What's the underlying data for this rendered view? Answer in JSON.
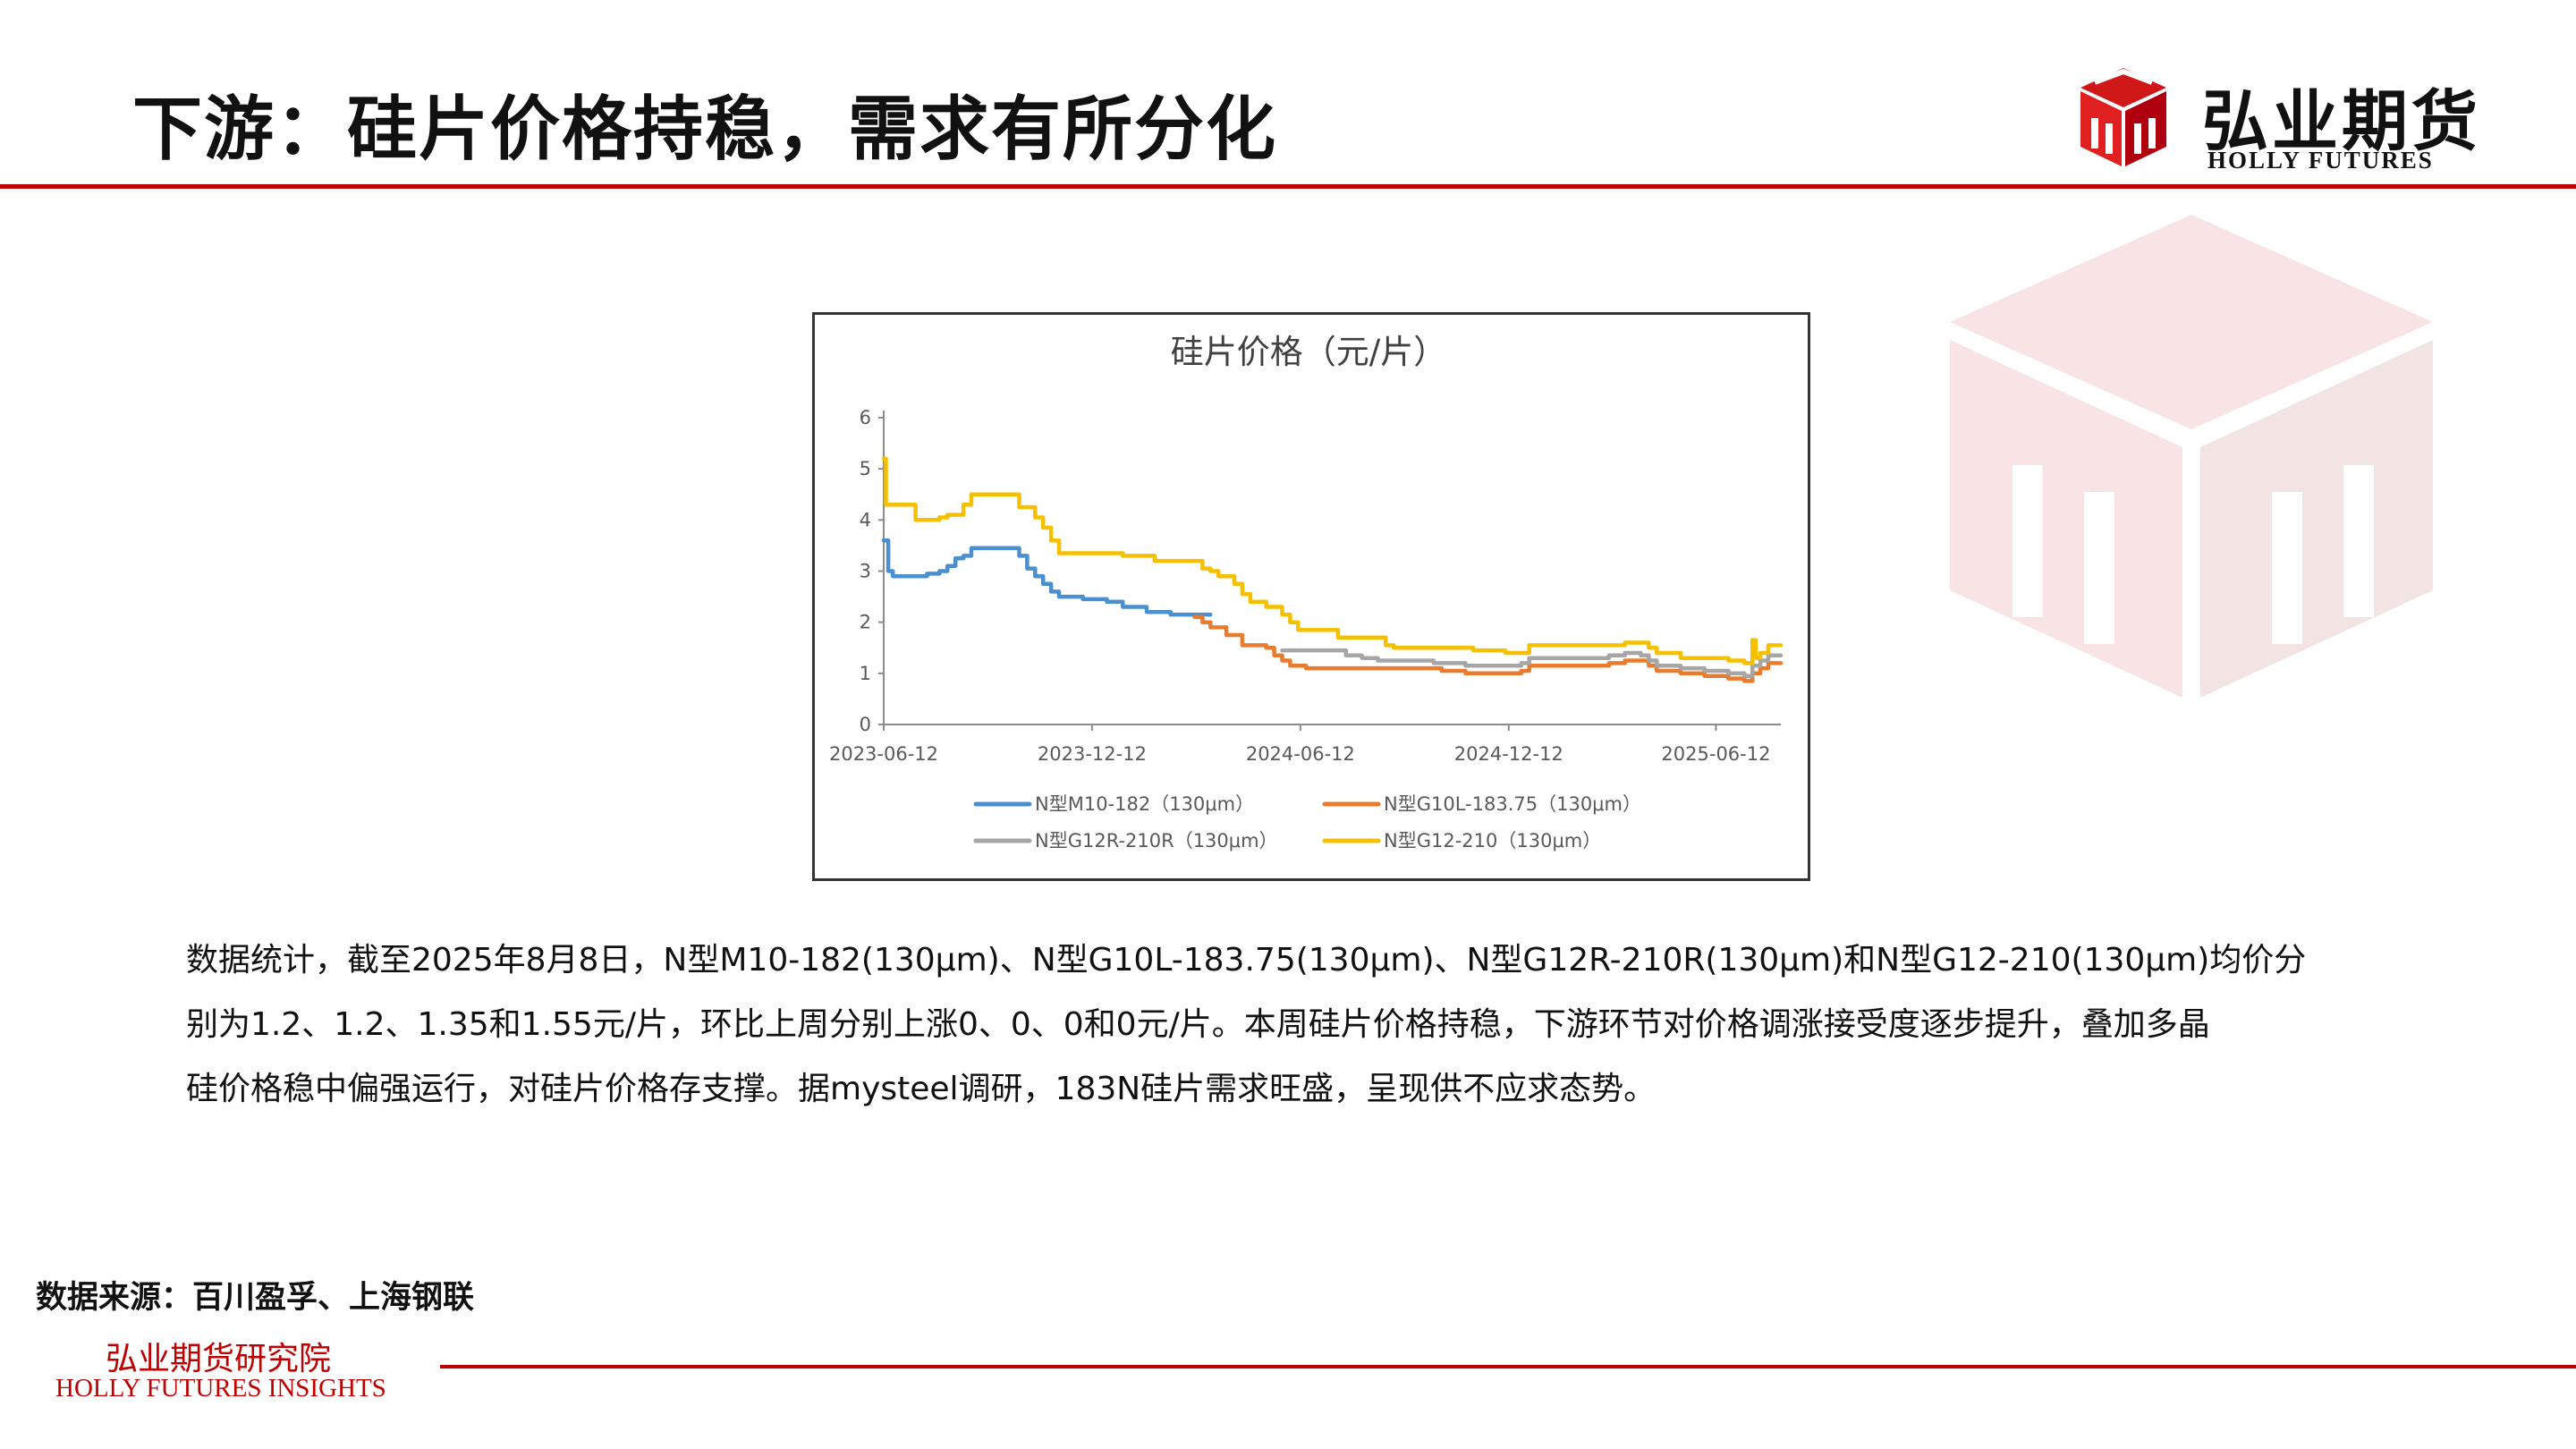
{
  "header": {
    "title": "下游：硅片价格持稳，需求有所分化"
  },
  "logo": {
    "name_cn": "弘业期货",
    "name_en": "HOLLY FUTURES",
    "icon": "cube-logo-icon"
  },
  "colors": {
    "accent": "#c00000",
    "series_m10": "#4a90d0",
    "series_g10l": "#e87b2d",
    "series_g12r": "#a6a6a6",
    "series_g12": "#f5c000"
  },
  "chart_data": {
    "type": "line",
    "title": "硅片价格（元/片）",
    "xlabel": "",
    "ylabel": "",
    "x_ticks": [
      "2023-06-12",
      "2023-12-12",
      "2024-06-12",
      "2024-12-12",
      "2025-06-12"
    ],
    "x_range": [
      "2023-06-12",
      "2025-08-08"
    ],
    "y_ticks": [
      "0",
      "1",
      "2",
      "3",
      "4",
      "5",
      "6"
    ],
    "ylim": [
      0,
      6
    ],
    "grid": false,
    "legend_position": "bottom",
    "step": true,
    "series": [
      {
        "name": "N型M10-182（130μm）",
        "color": "#4a90d0",
        "points": [
          [
            "2023-06-12",
            3.6
          ],
          [
            "2023-06-16",
            3.0
          ],
          [
            "2023-06-20",
            2.9
          ],
          [
            "2023-07-10",
            2.9
          ],
          [
            "2023-07-20",
            2.95
          ],
          [
            "2023-07-31",
            3.0
          ],
          [
            "2023-08-07",
            3.1
          ],
          [
            "2023-08-14",
            3.25
          ],
          [
            "2023-08-21",
            3.3
          ],
          [
            "2023-08-28",
            3.45
          ],
          [
            "2023-10-02",
            3.45
          ],
          [
            "2023-10-09",
            3.3
          ],
          [
            "2023-10-16",
            3.05
          ],
          [
            "2023-10-23",
            2.9
          ],
          [
            "2023-10-30",
            2.75
          ],
          [
            "2023-11-06",
            2.6
          ],
          [
            "2023-11-13",
            2.5
          ],
          [
            "2023-12-04",
            2.45
          ],
          [
            "2023-12-25",
            2.4
          ],
          [
            "2024-01-08",
            2.3
          ],
          [
            "2024-01-29",
            2.2
          ],
          [
            "2024-02-19",
            2.15
          ],
          [
            "2024-03-25",
            2.15
          ]
        ]
      },
      {
        "name": "N型G10L-183.75（130μm）",
        "color": "#e87b2d",
        "points": [
          [
            "2024-03-11",
            2.1
          ],
          [
            "2024-03-18",
            2.0
          ],
          [
            "2024-03-25",
            1.9
          ],
          [
            "2024-04-08",
            1.75
          ],
          [
            "2024-04-22",
            1.55
          ],
          [
            "2024-05-13",
            1.5
          ],
          [
            "2024-05-20",
            1.35
          ],
          [
            "2024-05-27",
            1.25
          ],
          [
            "2024-06-03",
            1.15
          ],
          [
            "2024-06-17",
            1.1
          ],
          [
            "2024-10-07",
            1.1
          ],
          [
            "2024-10-14",
            1.05
          ],
          [
            "2024-11-04",
            1.0
          ],
          [
            "2024-12-09",
            1.0
          ],
          [
            "2024-12-23",
            1.05
          ],
          [
            "2024-12-30",
            1.15
          ],
          [
            "2025-03-10",
            1.2
          ],
          [
            "2025-03-24",
            1.25
          ],
          [
            "2025-04-14",
            1.15
          ],
          [
            "2025-04-21",
            1.05
          ],
          [
            "2025-05-12",
            1.0
          ],
          [
            "2025-06-02",
            0.95
          ],
          [
            "2025-06-23",
            0.9
          ],
          [
            "2025-07-07",
            0.85
          ],
          [
            "2025-07-14",
            1.0
          ],
          [
            "2025-07-21",
            1.1
          ],
          [
            "2025-07-28",
            1.2
          ],
          [
            "2025-08-08",
            1.2
          ]
        ]
      },
      {
        "name": "N型G12R-210R（130μm）",
        "color": "#a6a6a6",
        "points": [
          [
            "2024-05-27",
            1.45
          ],
          [
            "2024-07-15",
            1.45
          ],
          [
            "2024-07-22",
            1.35
          ],
          [
            "2024-08-05",
            1.3
          ],
          [
            "2024-08-19",
            1.25
          ],
          [
            "2024-09-30",
            1.25
          ],
          [
            "2024-10-07",
            1.2
          ],
          [
            "2024-11-04",
            1.15
          ],
          [
            "2024-12-09",
            1.15
          ],
          [
            "2024-12-23",
            1.2
          ],
          [
            "2024-12-30",
            1.3
          ],
          [
            "2025-02-24",
            1.3
          ],
          [
            "2025-03-10",
            1.35
          ],
          [
            "2025-03-24",
            1.4
          ],
          [
            "2025-04-07",
            1.35
          ],
          [
            "2025-04-14",
            1.25
          ],
          [
            "2025-04-21",
            1.15
          ],
          [
            "2025-05-12",
            1.1
          ],
          [
            "2025-06-02",
            1.05
          ],
          [
            "2025-06-23",
            1.0
          ],
          [
            "2025-07-07",
            0.95
          ],
          [
            "2025-07-14",
            1.15
          ],
          [
            "2025-07-21",
            1.25
          ],
          [
            "2025-07-28",
            1.35
          ],
          [
            "2025-08-08",
            1.35
          ]
        ]
      },
      {
        "name": "N型G12-210（130μm）",
        "color": "#f5c000",
        "points": [
          [
            "2023-06-12",
            5.2
          ],
          [
            "2023-06-14",
            4.3
          ],
          [
            "2023-07-03",
            4.3
          ],
          [
            "2023-07-10",
            4.0
          ],
          [
            "2023-07-31",
            4.05
          ],
          [
            "2023-08-07",
            4.1
          ],
          [
            "2023-08-21",
            4.3
          ],
          [
            "2023-08-28",
            4.5
          ],
          [
            "2023-10-02",
            4.5
          ],
          [
            "2023-10-09",
            4.25
          ],
          [
            "2023-10-23",
            4.05
          ],
          [
            "2023-10-30",
            3.85
          ],
          [
            "2023-11-06",
            3.6
          ],
          [
            "2023-11-13",
            3.35
          ],
          [
            "2024-01-01",
            3.35
          ],
          [
            "2024-01-08",
            3.3
          ],
          [
            "2024-02-05",
            3.2
          ],
          [
            "2024-03-11",
            3.2
          ],
          [
            "2024-03-18",
            3.05
          ],
          [
            "2024-03-25",
            3.0
          ],
          [
            "2024-04-01",
            2.9
          ],
          [
            "2024-04-15",
            2.75
          ],
          [
            "2024-04-22",
            2.55
          ],
          [
            "2024-04-29",
            2.4
          ],
          [
            "2024-05-13",
            2.3
          ],
          [
            "2024-05-27",
            2.15
          ],
          [
            "2024-06-03",
            2.0
          ],
          [
            "2024-06-10",
            1.85
          ],
          [
            "2024-07-15",
            1.7
          ],
          [
            "2024-08-26",
            1.55
          ],
          [
            "2024-09-02",
            1.5
          ],
          [
            "2024-11-04",
            1.5
          ],
          [
            "2024-11-11",
            1.45
          ],
          [
            "2024-12-09",
            1.4
          ],
          [
            "2024-12-30",
            1.55
          ],
          [
            "2025-03-24",
            1.6
          ],
          [
            "2025-04-14",
            1.5
          ],
          [
            "2025-04-21",
            1.4
          ],
          [
            "2025-05-12",
            1.3
          ],
          [
            "2025-06-09",
            1.3
          ],
          [
            "2025-06-23",
            1.25
          ],
          [
            "2025-07-07",
            1.2
          ],
          [
            "2025-07-14",
            1.65
          ],
          [
            "2025-07-17",
            1.3
          ],
          [
            "2025-07-21",
            1.4
          ],
          [
            "2025-07-28",
            1.55
          ],
          [
            "2025-08-08",
            1.55
          ]
        ]
      }
    ]
  },
  "body": {
    "line1": "数据统计，截至2025年8月8日，N型M10-182(130μm)、N型G10L-183.75(130μm)、N型G12R-210R(130μm)和N型G12-210(130μm)均价分",
    "line2": "别为1.2、1.2、1.35和1.55元/片，环比上周分别上涨0、0、0和0元/片。本周硅片价格持稳，下游环节对价格调涨接受度逐步提升，叠加多晶",
    "line3": "硅价格稳中偏强运行，对硅片价格存支撑。据mysteel调研，183N硅片需求旺盛，呈现供不应求态势。"
  },
  "footer": {
    "source": "数据来源：百川盈孚、上海钢联",
    "institute_cn": "弘业期货研究院",
    "institute_en": "HOLLY FUTURES INSIGHTS"
  }
}
